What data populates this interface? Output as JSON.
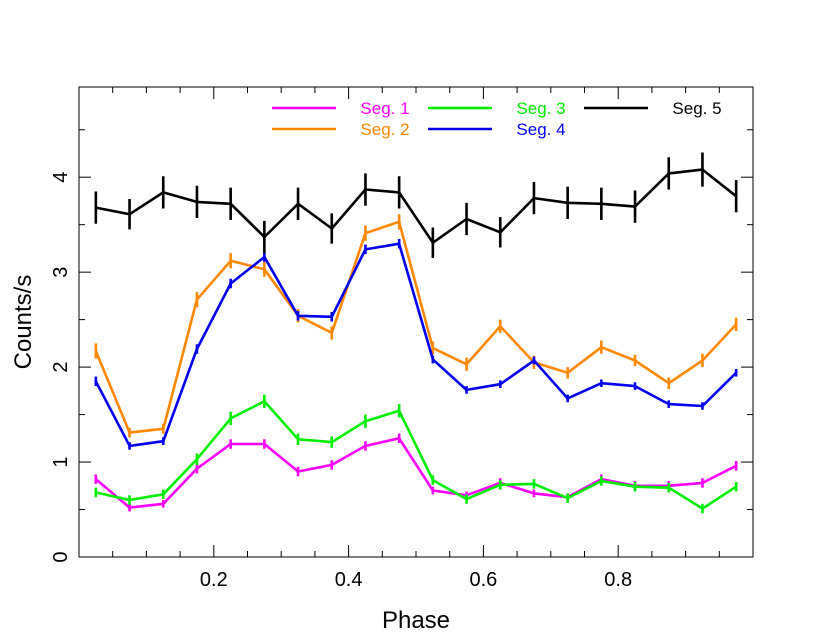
{
  "chart_data": {
    "type": "line",
    "xlabel": "Phase",
    "ylabel": "Counts/s",
    "xlim": [
      0,
      1
    ],
    "ylim": [
      0,
      4.95
    ],
    "x_ticks": [
      0.2,
      0.4,
      0.6,
      0.8
    ],
    "x_tick_labels": [
      "0.2",
      "0.4",
      "0.6",
      "0.8"
    ],
    "y_ticks": [
      0,
      1,
      2,
      3,
      4
    ],
    "y_tick_labels": [
      "0",
      "1",
      "2",
      "3",
      "4"
    ],
    "grid": false,
    "legend_position": "top-right",
    "x": [
      0.025,
      0.075,
      0.125,
      0.175,
      0.225,
      0.275,
      0.325,
      0.375,
      0.425,
      0.475,
      0.525,
      0.575,
      0.625,
      0.675,
      0.725,
      0.775,
      0.825,
      0.875,
      0.925,
      0.975
    ],
    "series": [
      {
        "name": "Seg. 1",
        "color": "#ff00ff",
        "values": [
          0.82,
          0.52,
          0.56,
          0.93,
          1.19,
          1.19,
          0.9,
          0.97,
          1.17,
          1.25,
          0.7,
          0.65,
          0.78,
          0.67,
          0.63,
          0.82,
          0.75,
          0.75,
          0.78,
          0.96
        ],
        "errors": [
          0.05,
          0.04,
          0.04,
          0.05,
          0.05,
          0.05,
          0.05,
          0.05,
          0.05,
          0.05,
          0.04,
          0.04,
          0.05,
          0.04,
          0.04,
          0.05,
          0.05,
          0.05,
          0.05,
          0.05
        ]
      },
      {
        "name": "Seg. 2",
        "color": "#ff8800",
        "values": [
          2.17,
          1.31,
          1.35,
          2.71,
          3.12,
          3.03,
          2.54,
          2.36,
          3.41,
          3.53,
          2.2,
          2.03,
          2.43,
          2.05,
          1.94,
          2.21,
          2.07,
          1.83,
          2.07,
          2.45
        ],
        "errors": [
          0.08,
          0.05,
          0.05,
          0.08,
          0.08,
          0.08,
          0.07,
          0.07,
          0.08,
          0.08,
          0.07,
          0.07,
          0.07,
          0.07,
          0.06,
          0.07,
          0.06,
          0.06,
          0.07,
          0.07
        ]
      },
      {
        "name": "Seg. 3",
        "color": "#00ee00",
        "values": [
          0.68,
          0.6,
          0.66,
          1.03,
          1.46,
          1.64,
          1.24,
          1.21,
          1.43,
          1.54,
          0.81,
          0.61,
          0.76,
          0.77,
          0.62,
          0.8,
          0.74,
          0.73,
          0.51,
          0.74
        ],
        "errors": [
          0.05,
          0.05,
          0.05,
          0.06,
          0.07,
          0.07,
          0.06,
          0.06,
          0.07,
          0.07,
          0.05,
          0.05,
          0.05,
          0.05,
          0.05,
          0.05,
          0.05,
          0.05,
          0.05,
          0.05
        ]
      },
      {
        "name": "Seg. 4",
        "color": "#0000ee",
        "values": [
          1.85,
          1.17,
          1.22,
          2.19,
          2.88,
          3.16,
          2.54,
          2.53,
          3.24,
          3.3,
          2.08,
          1.76,
          1.82,
          2.07,
          1.67,
          1.83,
          1.8,
          1.61,
          1.59,
          1.94
        ],
        "errors": [
          0.05,
          0.04,
          0.04,
          0.05,
          0.05,
          0.05,
          0.05,
          0.05,
          0.05,
          0.05,
          0.04,
          0.04,
          0.04,
          0.04,
          0.04,
          0.04,
          0.04,
          0.04,
          0.04,
          0.04
        ]
      },
      {
        "name": "Seg. 5",
        "color": "#000000",
        "values": [
          3.68,
          3.61,
          3.84,
          3.74,
          3.72,
          3.37,
          3.72,
          3.46,
          3.87,
          3.84,
          3.31,
          3.56,
          3.42,
          3.78,
          3.73,
          3.72,
          3.69,
          4.04,
          4.08,
          3.8
        ],
        "errors": [
          0.17,
          0.16,
          0.17,
          0.17,
          0.17,
          0.17,
          0.17,
          0.16,
          0.17,
          0.17,
          0.16,
          0.17,
          0.16,
          0.17,
          0.17,
          0.17,
          0.17,
          0.17,
          0.18,
          0.17
        ]
      }
    ]
  }
}
